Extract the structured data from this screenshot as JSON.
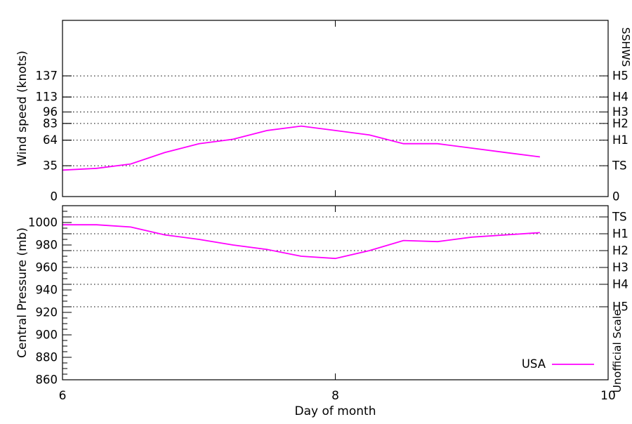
{
  "figure": {
    "background": "#ffffff",
    "axis_color": "#000000",
    "series_color": "#ff00ff",
    "legend": {
      "label": "USA"
    },
    "x_axis": {
      "label": "Day of month",
      "range": [
        6,
        10
      ],
      "ticks": [
        {
          "label": "6",
          "day": 6
        },
        {
          "label": "8",
          "day": 8
        },
        {
          "label": "10",
          "day": 10
        }
      ],
      "minor_tick_days": [
        8
      ]
    }
  },
  "chart_data": [
    {
      "type": "line",
      "name": "wind",
      "ylabel": "Wind speed (knots)",
      "right_axis_label": "SSHWS",
      "right_axis_label_reading": "downward",
      "ylim": [
        0,
        200
      ],
      "grid": "dotted-horizontal",
      "left_ticks": [
        {
          "label": "0",
          "value": 0
        },
        {
          "label": "35",
          "value": 35
        },
        {
          "label": "64",
          "value": 64
        },
        {
          "label": "83",
          "value": 83
        },
        {
          "label": "96",
          "value": 96
        },
        {
          "label": "113",
          "value": 113
        },
        {
          "label": "137",
          "value": 137
        }
      ],
      "right_ticks": [
        {
          "label": "0",
          "value": 0
        },
        {
          "label": "TS",
          "value": 35
        },
        {
          "label": "H1",
          "value": 64
        },
        {
          "label": "H2",
          "value": 83
        },
        {
          "label": "H3",
          "value": 96
        },
        {
          "label": "H4",
          "value": 113
        },
        {
          "label": "H5",
          "value": 137
        }
      ],
      "gridline_values": [
        35,
        64,
        83,
        96,
        113,
        137
      ],
      "series": [
        {
          "name": "USA",
          "x": [
            6.0,
            6.25,
            6.5,
            6.75,
            7.0,
            7.25,
            7.5,
            7.75,
            8.0,
            8.25,
            8.5,
            8.75,
            9.0,
            9.25,
            9.5
          ],
          "y": [
            30,
            32,
            37,
            50,
            60,
            65,
            75,
            80,
            75,
            70,
            60,
            60,
            55,
            50,
            45
          ]
        }
      ]
    },
    {
      "type": "line",
      "name": "pressure",
      "ylabel": "Central Pressure (mb)",
      "right_axis_label": "Unofficial Scale",
      "right_axis_label_reading": "upward",
      "ylim": [
        860,
        1015
      ],
      "grid": "dotted-horizontal",
      "left_ticks": [
        {
          "label": "1000",
          "value": 1000
        },
        {
          "label": "980",
          "value": 980
        },
        {
          "label": "960",
          "value": 960
        },
        {
          "label": "940",
          "value": 940
        },
        {
          "label": "920",
          "value": 920
        },
        {
          "label": "900",
          "value": 900
        },
        {
          "label": "880",
          "value": 880
        },
        {
          "label": "860",
          "value": 860
        }
      ],
      "minor_tick_step": 5,
      "right_ticks": [
        {
          "label": "TS",
          "value": 1005
        },
        {
          "label": "H1",
          "value": 990
        },
        {
          "label": "H2",
          "value": 975
        },
        {
          "label": "H3",
          "value": 960
        },
        {
          "label": "H4",
          "value": 945
        },
        {
          "label": "H5",
          "value": 925
        }
      ],
      "gridline_values": [
        1005,
        990,
        975,
        960,
        945,
        925
      ],
      "series": [
        {
          "name": "USA",
          "x": [
            6.0,
            6.25,
            6.5,
            6.75,
            7.0,
            7.25,
            7.5,
            7.75,
            8.0,
            8.25,
            8.5,
            8.75,
            9.0,
            9.25,
            9.5
          ],
          "y": [
            998,
            998,
            996,
            989,
            985,
            980,
            976,
            970,
            968,
            975,
            984,
            983,
            987,
            989,
            991
          ]
        }
      ]
    }
  ]
}
